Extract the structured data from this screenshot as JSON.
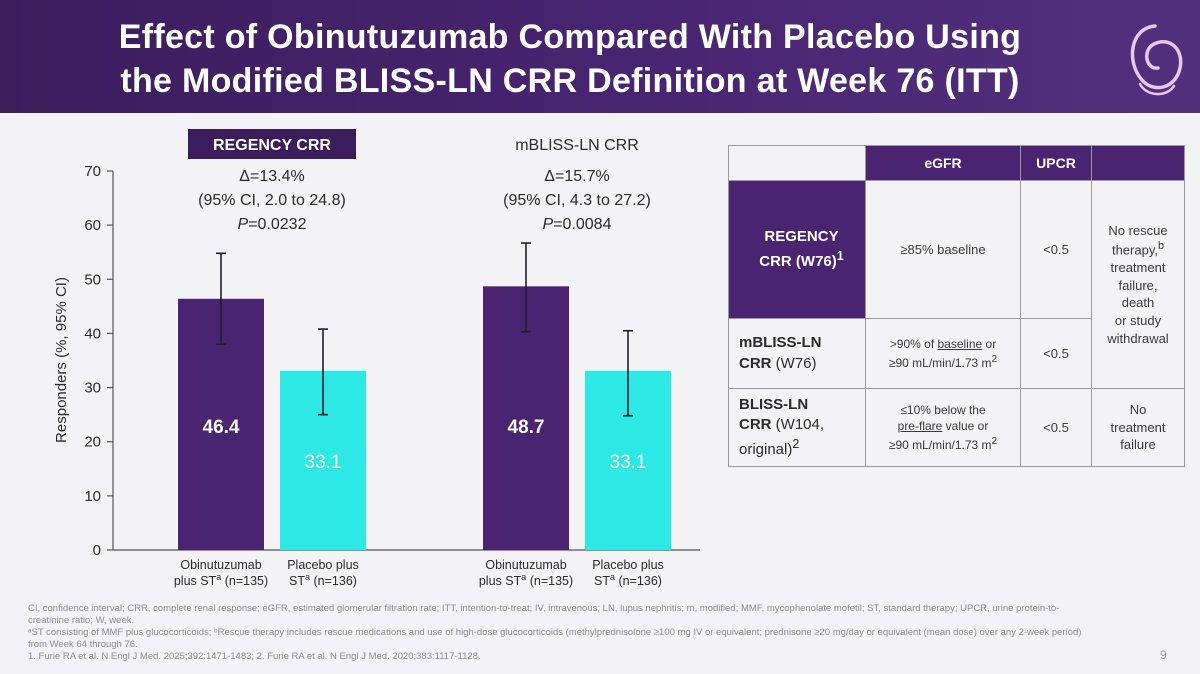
{
  "header": {
    "title_line1": "Effect of Obinutuzumab Compared With Placebo Using",
    "title_line2": "the Modified BLISS-LN CRR Definition at Week 76 (ITT)"
  },
  "colors": {
    "header_bg": "#3b1d5c",
    "obinutuzumab": "#4a2470",
    "placebo": "#2ee8e6",
    "badge": "#3b1d5c"
  },
  "chart_data": {
    "type": "bar",
    "ylabel": "Responders (%, 95% CI)",
    "ylim": [
      0,
      70
    ],
    "yticks": [
      "0",
      "10",
      "20",
      "30",
      "40",
      "50",
      "60",
      "70"
    ],
    "grid": false,
    "groups": [
      {
        "title": "REGENCY CRR",
        "title_style": "badge",
        "delta": "Δ=13.4%",
        "ci": "(95% CI, 2.0 to 24.8)",
        "p_label": "P",
        "p_value": "=0.0232",
        "bars": [
          {
            "category": "Obinutuzumab plus ST (n=135)",
            "value": 46.4,
            "label": "46.4",
            "ci_low": 38.0,
            "ci_high": 54.8,
            "line1": "Obinutuzumab",
            "line2a": "plus ST",
            "sup": "a",
            "line2b": " (n=135)"
          },
          {
            "category": "Placebo plus ST (n=136)",
            "value": 33.1,
            "label": "33.1",
            "ci_low": 25.0,
            "ci_high": 40.8,
            "line1": "Placebo plus",
            "line2a": "ST",
            "sup": "a",
            "line2b": " (n=136)"
          }
        ]
      },
      {
        "title": "mBLISS-LN CRR",
        "title_style": "plain",
        "delta": "Δ=15.7%",
        "ci": "(95% CI, 4.3 to 27.2)",
        "p_label": "P",
        "p_value": "=0.0084",
        "bars": [
          {
            "category": "Obinutuzumab plus ST (n=135)",
            "value": 48.7,
            "label": "48.7",
            "ci_low": 40.3,
            "ci_high": 56.7,
            "line1": "Obinutuzumab",
            "line2a": "plus ST",
            "sup": "a",
            "line2b": " (n=135)"
          },
          {
            "category": "Placebo plus ST (n=136)",
            "value": 33.1,
            "label": "33.1",
            "ci_low": 24.8,
            "ci_high": 40.5,
            "line1": "Placebo plus",
            "line2a": "ST",
            "sup": "a",
            "line2b": " (n=136)"
          }
        ]
      }
    ]
  },
  "table": {
    "headers": {
      "egfr": "eGFR",
      "upcr": "UPCR"
    },
    "rows": [
      {
        "label": "REGENCY CRR (W76)",
        "label_a": "REGENCY",
        "label_b": "CRR (W76)",
        "label_sup": "1",
        "egfr": "≥85% baseline",
        "upcr": "<0.5"
      },
      {
        "label_a": "mBLISS-LN",
        "label_b": "CRR",
        "label_b2": " (W76)",
        "egfr_line1_a": ">90% of ",
        "egfr_line1_u": "baseline",
        "egfr_line1_b": " or",
        "egfr_line2": "≥90 mL/min/1.73 m",
        "egfr_sup": "2",
        "upcr": "<0.5"
      },
      {
        "label_a": "BLISS-LN",
        "label_b": "CRR",
        "label_b2": " (W104,",
        "label_c": "original)",
        "label_sup": "2",
        "egfr_line1": "≤10% below the",
        "egfr_line2_u": "pre-flare",
        "egfr_line2_b": " value or",
        "egfr_line3": "≥90 mL/min/1.73 m",
        "egfr_sup": "2",
        "upcr": "<0.5"
      }
    ],
    "other_top": {
      "l1": "No rescue",
      "l2": "therapy,",
      "l2_sup": "b",
      "l3": "treatment",
      "l4": "failure,",
      "l5": "death",
      "l6": "or study",
      "l7": "withdrawal"
    },
    "other_bottom": {
      "l1": "No",
      "l2": "treatment",
      "l3": "failure"
    }
  },
  "footnotes": {
    "line1": "CI, confidence interval; CRR, complete renal response; eGFR, estimated glomerular filtration rate; ITT, intention-to-treat; IV, intravenous; LN, lupus nephritis; m, modified; MMF, mycophenolate mofetil; ST, standard therapy; UPCR, urine protein-to-",
    "line2": "creatinine ratio; W, week.",
    "line3": "ᵃST consisting of MMF plus glucocorticoids; ᵇRescue therapy includes rescue medications and use of high-dose glucocorticoids (methylprednisolone ≥100 mg IV or equivalent; prednisone ≥20 mg/day or equivalent (mean dose) over any 2-week period)",
    "line4": "from Week 64 through 76.",
    "line5": "1. Furie RA et al. N Engl J Med. 2025;392:1471-1483; 2. Furie RA et al. N Engl J Med. 2020;383:1117-1128."
  },
  "page_number": "9"
}
